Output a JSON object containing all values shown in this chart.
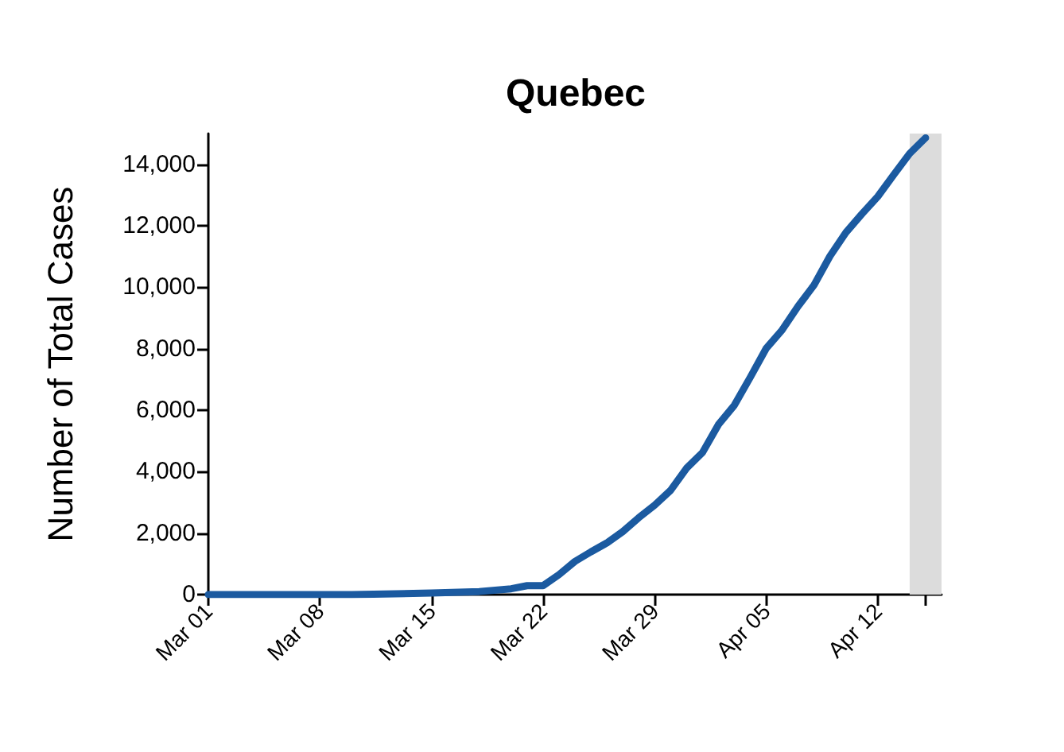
{
  "chart_data": {
    "type": "line",
    "title": "Quebec",
    "ylabel": "Number of Total Cases",
    "x": [
      "--03-01",
      "--03-05",
      "--03-10",
      "--03-15",
      "--03-18",
      "--03-20",
      "--03-21",
      "--03-22",
      "--03-23",
      "--03-24",
      "--03-25",
      "--03-26",
      "--03-27",
      "--03-28",
      "--03-29",
      "--03-30",
      "--03-31",
      "--04-01",
      "--04-02",
      "--04-03",
      "--04-04",
      "--04-05",
      "--04-06",
      "--04-07",
      "--04-08",
      "--04-09",
      "--04-10",
      "--04-11",
      "--04-12",
      "--04-13",
      "--04-14",
      "--04-15"
    ],
    "series": [
      {
        "color": "#1b5aa0",
        "values": [
          0,
          0,
          0,
          50,
          100,
          190,
          290,
          290,
          650,
          1080,
          1390,
          1680,
          2050,
          2500,
          2910,
          3390,
          4110,
          4620,
          5530,
          6160,
          7070,
          8010,
          8610,
          9380,
          10070,
          11010,
          11780,
          12380,
          12950,
          13660,
          14350,
          14860
        ]
      }
    ],
    "xlim": [
      "--03-01",
      "--04-16"
    ],
    "xticks": [
      {
        "value": "--03-01",
        "label": "Mar 01"
      },
      {
        "value": "--03-08",
        "label": "Mar 08"
      },
      {
        "value": "--03-15",
        "label": "Mar 15"
      },
      {
        "value": "--03-22",
        "label": "Mar 22"
      },
      {
        "value": "--03-29",
        "label": "Mar 29"
      },
      {
        "value": "--04-05",
        "label": "Apr 05"
      },
      {
        "value": "--04-12",
        "label": "Apr 12"
      },
      {
        "value": "--04-15",
        "label": null
      }
    ],
    "ylim": [
      0,
      15000
    ],
    "yticks": [
      {
        "value": 0,
        "label": "0"
      },
      {
        "value": 2000,
        "label": "2,000"
      },
      {
        "value": 4000,
        "label": "4,000"
      },
      {
        "value": 6000,
        "label": "6,000"
      },
      {
        "value": 8000,
        "label": "8,000"
      },
      {
        "value": 10000,
        "label": "10,000"
      },
      {
        "value": 12000,
        "label": "12,000"
      },
      {
        "value": 14000,
        "label": "14,000"
      }
    ],
    "bands": [
      {
        "axis": "x",
        "from": "--04-14",
        "to": "--04-16",
        "color": "#dcdcdc"
      }
    ],
    "grid": false,
    "marker": "none",
    "line_style": "solid"
  }
}
